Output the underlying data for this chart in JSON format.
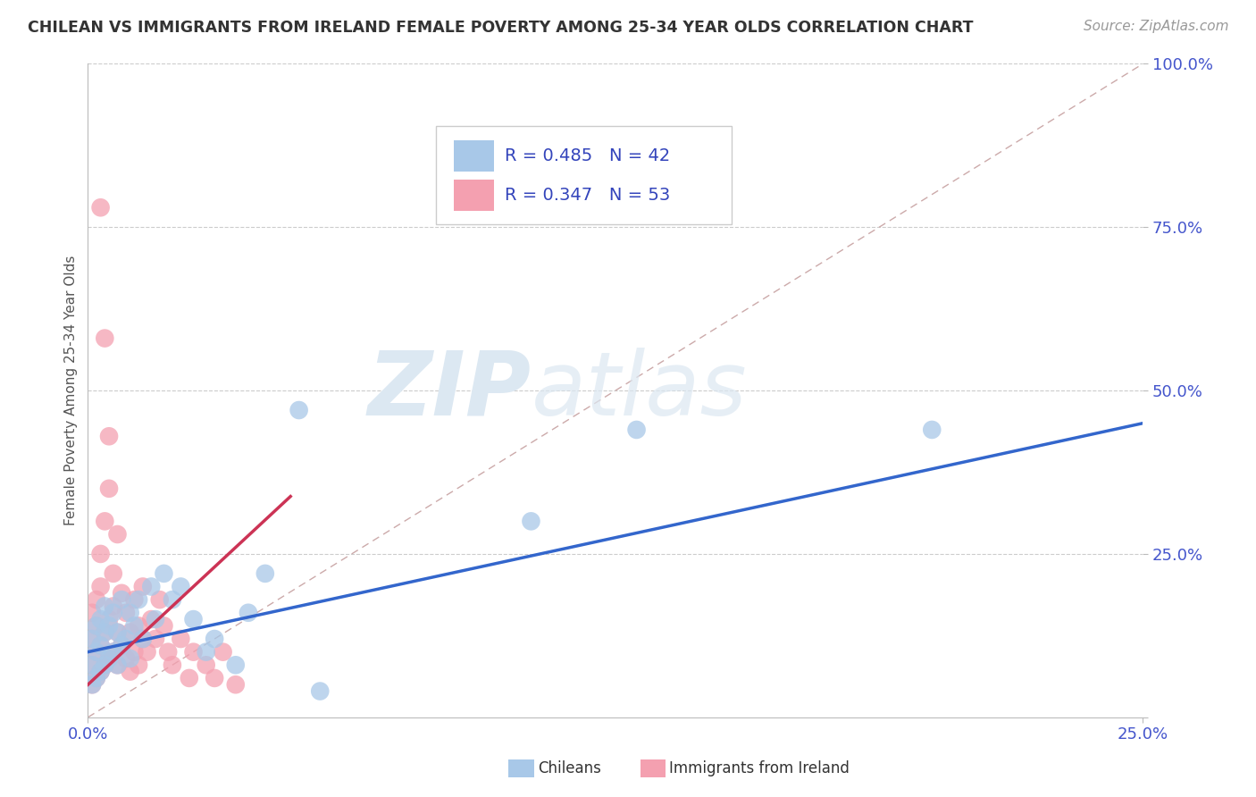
{
  "title": "CHILEAN VS IMMIGRANTS FROM IRELAND FEMALE POVERTY AMONG 25-34 YEAR OLDS CORRELATION CHART",
  "source": "Source: ZipAtlas.com",
  "ylabel_label": "Female Poverty Among 25-34 Year Olds",
  "legend_blue_r": "R = 0.485",
  "legend_blue_n": "N = 42",
  "legend_pink_r": "R = 0.347",
  "legend_pink_n": "N = 53",
  "legend_label_blue": "Chileans",
  "legend_label_pink": "Immigrants from Ireland",
  "blue_color": "#a8c8e8",
  "pink_color": "#f4a0b0",
  "blue_line_color": "#3366cc",
  "pink_line_color": "#cc3355",
  "ref_line_color": "#ccaaaa",
  "watermark_zip_color": "#d8e4f0",
  "watermark_atlas_color": "#d0dce8",
  "background_color": "#ffffff",
  "blue_x": [
    0.001,
    0.001,
    0.001,
    0.002,
    0.002,
    0.002,
    0.003,
    0.003,
    0.003,
    0.004,
    0.004,
    0.004,
    0.005,
    0.005,
    0.006,
    0.006,
    0.007,
    0.007,
    0.008,
    0.008,
    0.009,
    0.01,
    0.01,
    0.011,
    0.012,
    0.013,
    0.015,
    0.016,
    0.018,
    0.02,
    0.022,
    0.025,
    0.028,
    0.03,
    0.035,
    0.038,
    0.042,
    0.05,
    0.055,
    0.105,
    0.13,
    0.2
  ],
  "blue_y": [
    0.05,
    0.08,
    0.12,
    0.06,
    0.1,
    0.14,
    0.07,
    0.11,
    0.15,
    0.08,
    0.13,
    0.17,
    0.09,
    0.14,
    0.1,
    0.16,
    0.08,
    0.13,
    0.11,
    0.18,
    0.12,
    0.09,
    0.16,
    0.14,
    0.18,
    0.12,
    0.2,
    0.15,
    0.22,
    0.18,
    0.2,
    0.15,
    0.1,
    0.12,
    0.08,
    0.16,
    0.22,
    0.47,
    0.04,
    0.3,
    0.44,
    0.44
  ],
  "pink_x": [
    0.001,
    0.001,
    0.001,
    0.001,
    0.002,
    0.002,
    0.002,
    0.002,
    0.003,
    0.003,
    0.003,
    0.003,
    0.004,
    0.004,
    0.004,
    0.005,
    0.005,
    0.005,
    0.006,
    0.006,
    0.006,
    0.007,
    0.007,
    0.007,
    0.008,
    0.008,
    0.009,
    0.009,
    0.01,
    0.01,
    0.011,
    0.011,
    0.012,
    0.012,
    0.013,
    0.013,
    0.014,
    0.015,
    0.016,
    0.017,
    0.018,
    0.019,
    0.02,
    0.022,
    0.024,
    0.025,
    0.028,
    0.03,
    0.032,
    0.035,
    0.003,
    0.004,
    0.005
  ],
  "pink_y": [
    0.05,
    0.08,
    0.12,
    0.16,
    0.06,
    0.1,
    0.14,
    0.18,
    0.07,
    0.11,
    0.2,
    0.25,
    0.08,
    0.13,
    0.3,
    0.09,
    0.15,
    0.35,
    0.1,
    0.17,
    0.22,
    0.08,
    0.13,
    0.28,
    0.11,
    0.19,
    0.09,
    0.16,
    0.07,
    0.13,
    0.1,
    0.18,
    0.08,
    0.14,
    0.12,
    0.2,
    0.1,
    0.15,
    0.12,
    0.18,
    0.14,
    0.1,
    0.08,
    0.12,
    0.06,
    0.1,
    0.08,
    0.06,
    0.1,
    0.05,
    0.78,
    0.58,
    0.43
  ]
}
